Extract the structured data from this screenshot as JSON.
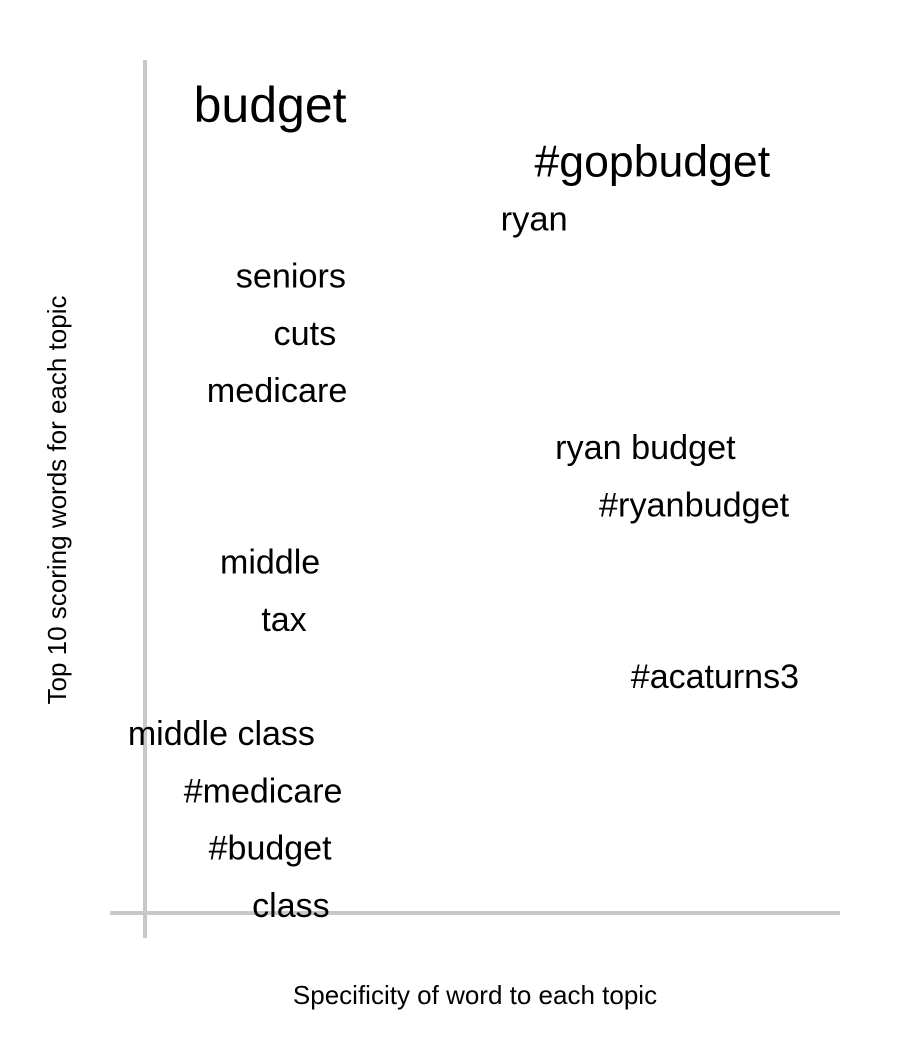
{
  "chart_data": {
    "type": "scatter",
    "xlabel": "Specificity of word to each topic",
    "ylabel": "Top 10 scoring words for each topic",
    "grid": false,
    "legend": "none",
    "points": [
      {
        "word": "budget",
        "weight": 1.0,
        "specificity": 0.18
      },
      {
        "word": "#gopbudget",
        "weight": 0.78,
        "specificity": 0.73
      },
      {
        "word": "ryan",
        "weight": 0.37,
        "specificity": 0.56
      },
      {
        "word": "seniors",
        "weight": 0.36,
        "specificity": 0.21
      },
      {
        "word": "cuts",
        "weight": 0.36,
        "specificity": 0.23
      },
      {
        "word": "medicare",
        "weight": 0.36,
        "specificity": 0.19
      },
      {
        "word": "ryan budget",
        "weight": 0.36,
        "specificity": 0.72
      },
      {
        "word": "#ryanbudget",
        "weight": 0.36,
        "specificity": 0.79
      },
      {
        "word": "middle",
        "weight": 0.35,
        "specificity": 0.18
      },
      {
        "word": "tax",
        "weight": 0.35,
        "specificity": 0.2
      },
      {
        "word": "#acaturns3",
        "weight": 0.35,
        "specificity": 0.82
      },
      {
        "word": "middle class",
        "weight": 0.35,
        "specificity": 0.11
      },
      {
        "word": "#medicare",
        "weight": 0.35,
        "specificity": 0.17
      },
      {
        "word": "#budget",
        "weight": 0.35,
        "specificity": 0.18
      },
      {
        "word": "class",
        "weight": 0.35,
        "specificity": 0.21
      }
    ]
  }
}
